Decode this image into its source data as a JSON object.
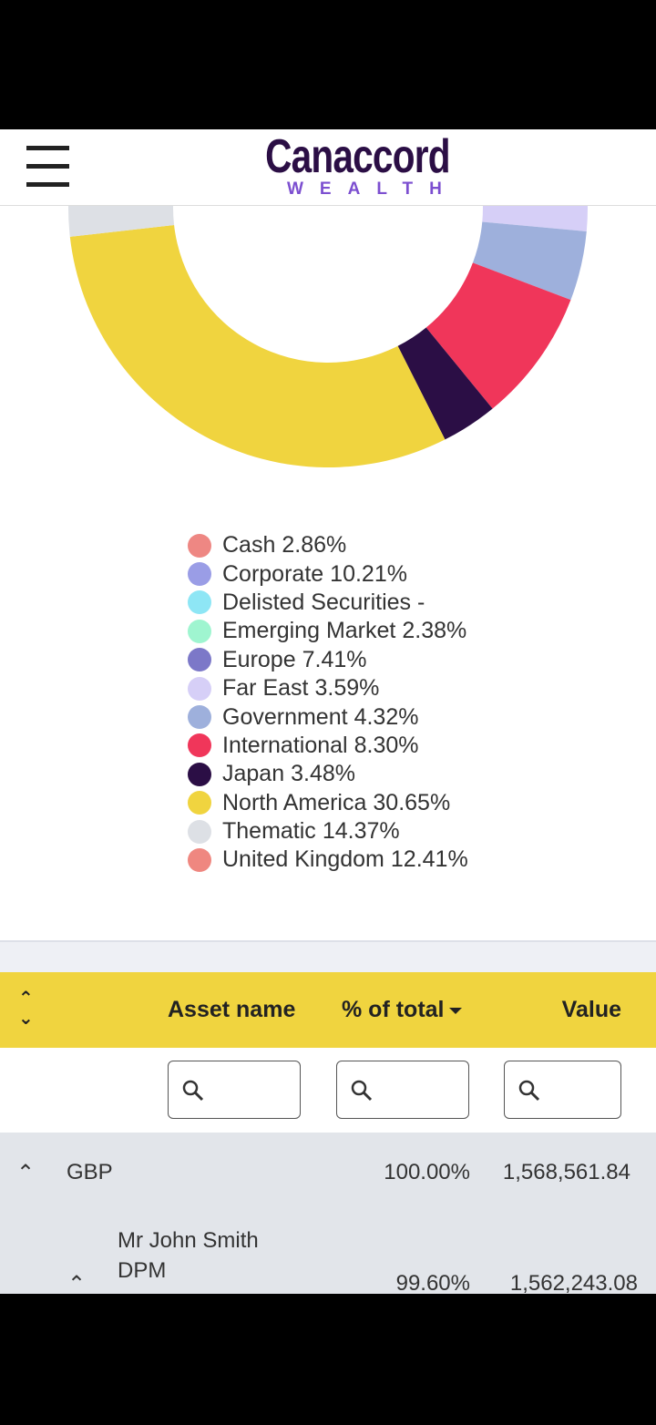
{
  "header": {
    "brand": "Canaccord",
    "brand_sub": "WEALTH"
  },
  "chart_data": {
    "type": "pie",
    "donut": true,
    "categories": [
      "Cash",
      "Corporate",
      "Delisted Securities",
      "Emerging Market",
      "Europe",
      "Far East",
      "Government",
      "International",
      "Japan",
      "North America",
      "Thematic",
      "United Kingdom"
    ],
    "values": [
      2.86,
      10.21,
      null,
      2.38,
      7.41,
      3.59,
      4.32,
      8.3,
      3.48,
      30.65,
      14.37,
      12.41
    ],
    "value_labels": [
      "2.86%",
      "10.21%",
      "-",
      "2.38%",
      "7.41%",
      "3.59%",
      "4.32%",
      "8.30%",
      "3.48%",
      "30.65%",
      "14.37%",
      "12.41%"
    ],
    "colors": [
      "#ee8783",
      "#9a9de6",
      "#8ee6f5",
      "#9ff5d0",
      "#7c78c8",
      "#d6cff7",
      "#9eb0dc",
      "#f0365a",
      "#2b0e45",
      "#f0d43f",
      "#dde0e5",
      "#ef8780"
    ]
  },
  "table": {
    "columns": [
      "Asset name",
      "% of total",
      "Value"
    ],
    "rows": [
      [
        "GBP",
        "100.00%",
        "1,568,561.84"
      ],
      [
        "Mr John Smith DPM",
        "99.60%",
        "1,562,243.08"
      ]
    ]
  }
}
